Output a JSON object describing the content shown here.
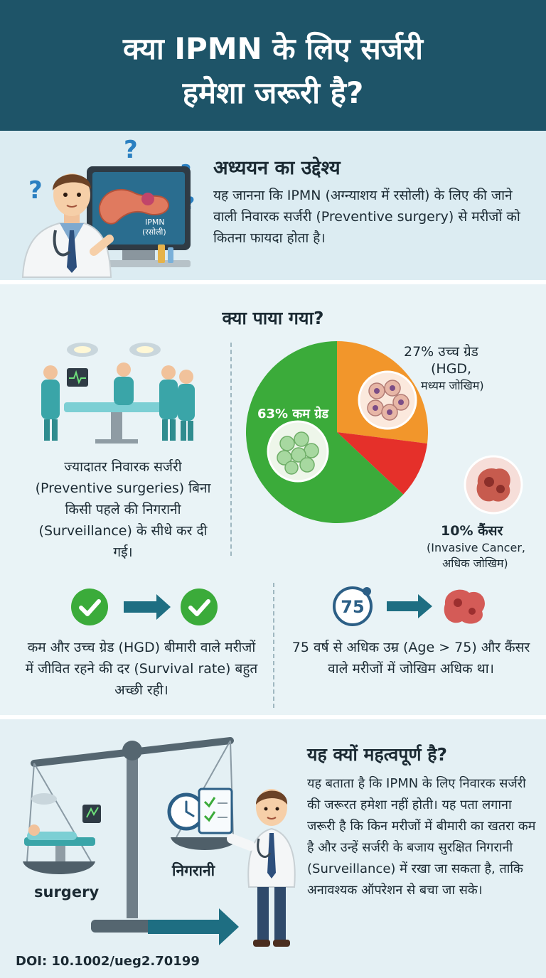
{
  "header": {
    "title_line1": "क्या IPMN के लिए सर्जरी",
    "title_line2": "हमेशा जरूरी है?"
  },
  "objective": {
    "title": "अध्ययन का उद्देश्य",
    "text": "यह जानना कि IPMN (अग्न्याशय में रसोली) के लिए की जाने वाली निवारक सर्जरी (Preventive surgery) से मरीजों को कितना फायदा होता है।",
    "monitor_label_line1": "IPMN",
    "monitor_label_line2": "(रसोली)"
  },
  "findings": {
    "title": "क्या पाया गया?",
    "surgery_text": "ज्यादातर निवारक सर्जरी (Preventive surgeries) बिना किसी पहले की निगरानी (Surveillance) के सीधे कर दी गई।",
    "survival_text": "कम और उच्च ग्रेड (HGD) बीमारी वाले मरीजों में जीवित रहने की दर (Survival rate) बहुत अच्छी रही।",
    "age_text": "75 वर्ष से अधिक उम्र (Age > 75) और कैंसर वाले मरीजों में जोखिम अधिक था।",
    "age_badge": "75"
  },
  "chart_data": {
    "type": "pie",
    "categories": [
      "कम ग्रेड",
      "उच्च ग्रेड (HGD, मध्यम जोखिम)",
      "कैंसर (Invasive Cancer, अधिक जोखिम)"
    ],
    "values": [
      63,
      27,
      10
    ],
    "colors": [
      "#3bab3a",
      "#f2962b",
      "#e5302a"
    ],
    "labels": {
      "low": "63% कम ग्रेड",
      "high_line1": "27% उच्च ग्रेड",
      "high_line2": "(HGD,",
      "high_line3": "मध्यम जोखिम)",
      "cancer_line1": "10% कैंसर",
      "cancer_line2": "(Invasive Cancer,",
      "cancer_line3": "अधिक जोखिम)"
    }
  },
  "importance": {
    "title": "यह क्यों महत्वपूर्ण है?",
    "text": "यह बताता है कि IPMN के लिए निवारक सर्जरी की जरूरत हमेशा नहीं होती। यह पता लगाना जरूरी है कि किन मरीजों में बीमारी का खतरा कम है और उन्हें सर्जरी के बजाय सुरक्षित निगरानी (Surveillance) में रखा जा सकता है, ताकि अनावश्यक ऑपरेशन से बचा जा सके।",
    "scale_left_label": "surgery",
    "scale_right_label": "निगरानी"
  },
  "doi": "DOI: 10.1002/ueg2.70199"
}
